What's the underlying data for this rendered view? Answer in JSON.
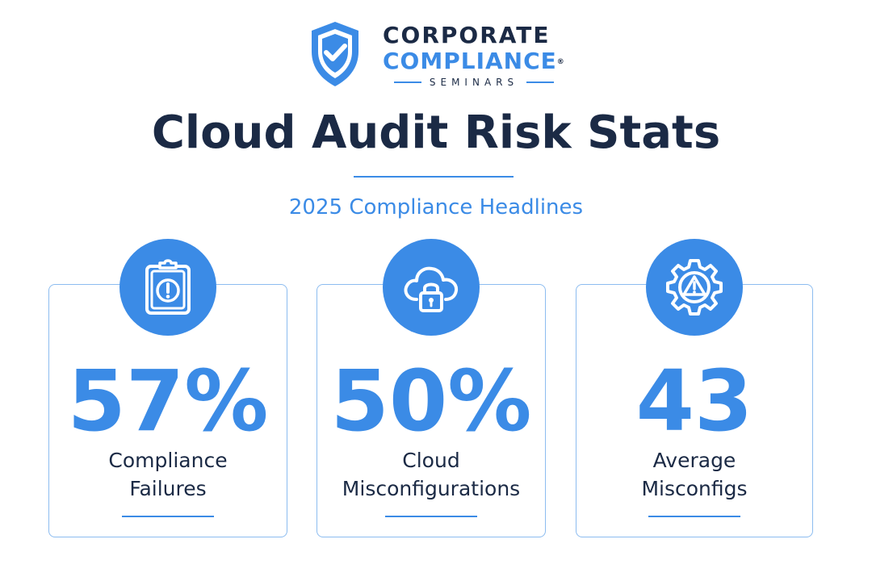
{
  "logo": {
    "line1": "CORPORATE",
    "line2": "COMPLIANCE",
    "registered": "®",
    "line3": "SEMINARS",
    "icon": "shield-check-icon"
  },
  "title": "Cloud Audit Risk Stats",
  "subtitle": "2025 Compliance Headlines",
  "colors": {
    "navy": "#1b2a45",
    "accent": "#3b8be6",
    "card_border": "#8cbcf0"
  },
  "cards": [
    {
      "icon": "clipboard-alert-icon",
      "value": "57%",
      "label_line1": "Compliance",
      "label_line2": "Failures"
    },
    {
      "icon": "cloud-lock-icon",
      "value": "50%",
      "label_line1": "Cloud",
      "label_line2": "Misconfigurations"
    },
    {
      "icon": "gear-warning-icon",
      "value": "43",
      "label_line1": "Average",
      "label_line2": "Misconfigs"
    }
  ]
}
